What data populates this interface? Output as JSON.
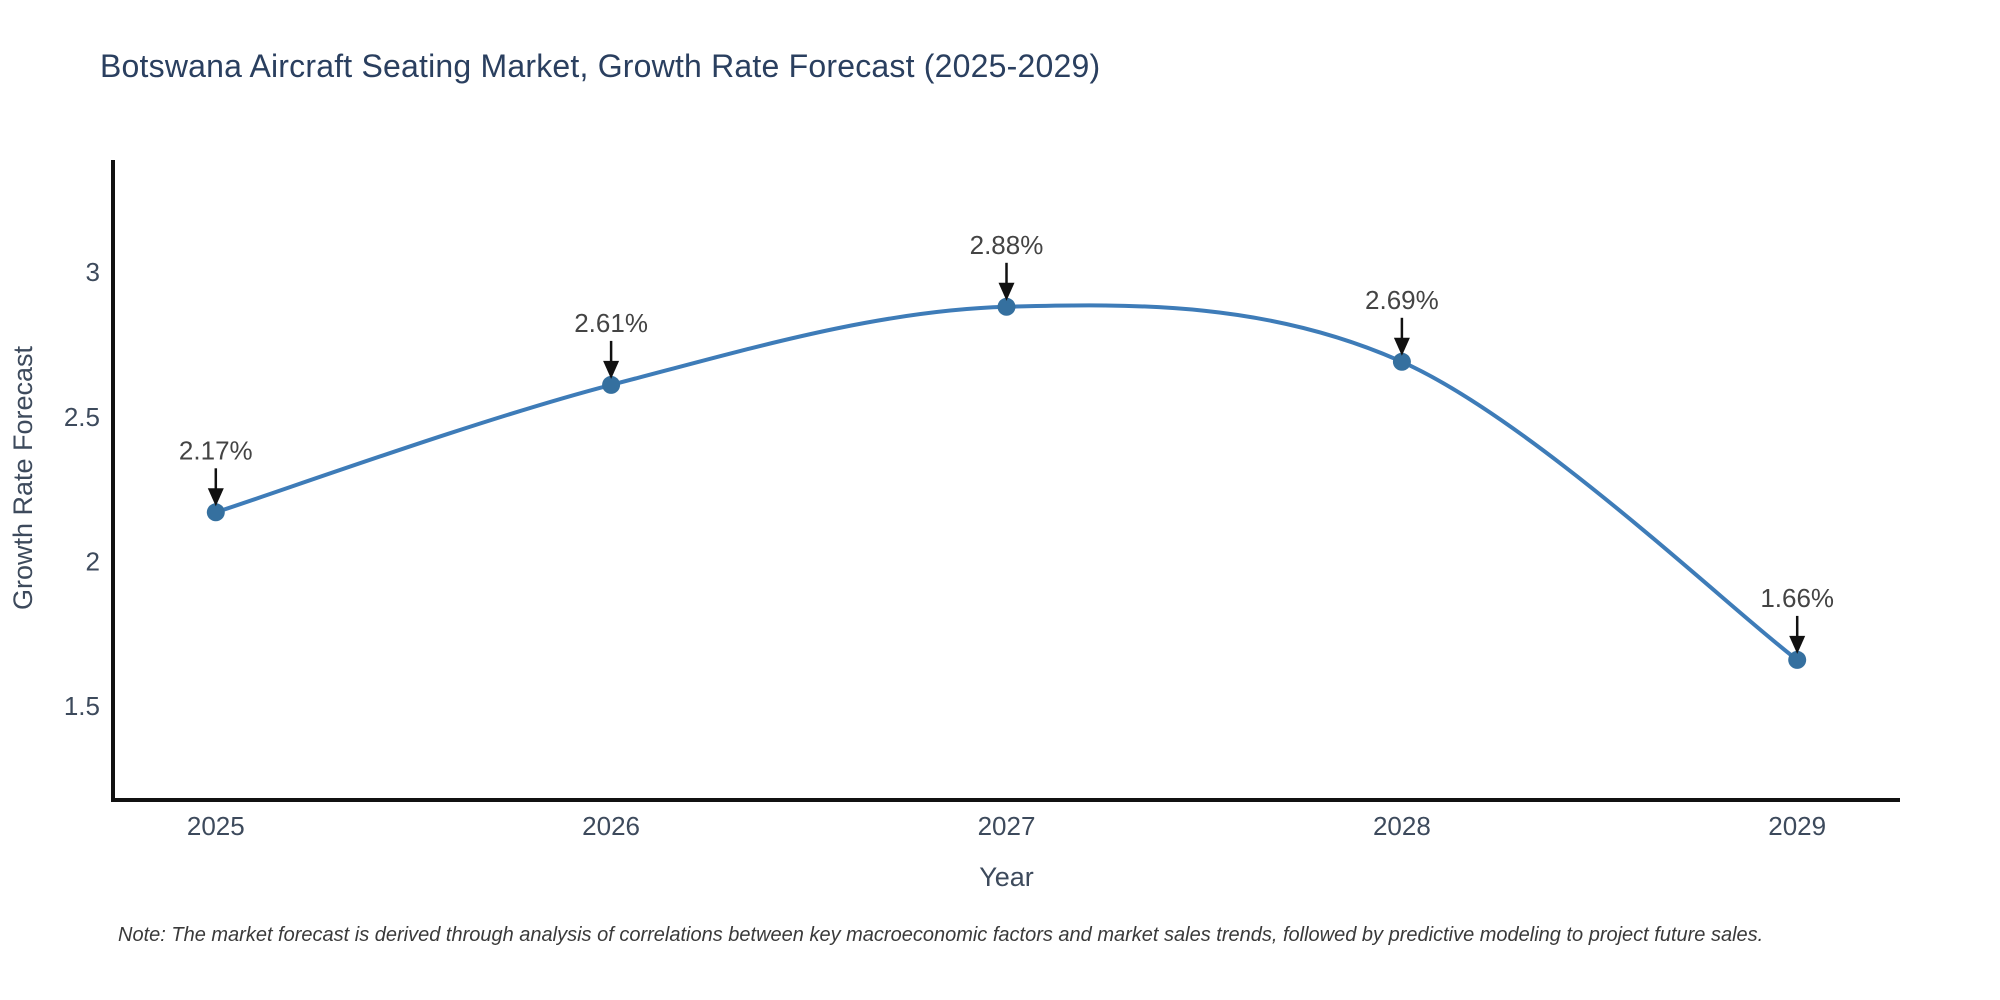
{
  "title": "Botswana Aircraft Seating Market, Growth Rate Forecast (2025-2029)",
  "note": "Note: The market forecast is derived through analysis of correlations between key macroeconomic factors and market sales trends, followed by predictive modeling to project future sales.",
  "chart_data": {
    "type": "line",
    "title": "Botswana Aircraft Seating Market, Growth Rate Forecast (2025-2029)",
    "xlabel": "Year",
    "ylabel": "Growth Rate Forecast",
    "x": [
      2025,
      2026,
      2027,
      2028,
      2029
    ],
    "xticks": [
      "2025",
      "2026",
      "2027",
      "2028",
      "2029"
    ],
    "yticks": [
      "1.5",
      "2",
      "2.5",
      "3"
    ],
    "ytick_values": [
      1.5,
      2,
      2.5,
      3
    ],
    "xlim": [
      2024.74,
      2029.26
    ],
    "ylim": [
      1.176,
      3.387
    ],
    "grid": false,
    "legend": "none",
    "line_shape": "spline",
    "series": [
      {
        "name": "Growth Rate Forecast",
        "values": [
          2.17,
          2.61,
          2.88,
          2.69,
          1.66
        ]
      }
    ],
    "point_labels": [
      "2.17%",
      "2.61%",
      "2.88%",
      "2.69%",
      "1.66%"
    ],
    "annotation_style": "arrow-down-to-point",
    "colors": {
      "line": "#3e7cb8",
      "marker": "#35709f",
      "axis": "#111111",
      "tick_label": "#3d4a5c",
      "axis_title": "#3d4a5c",
      "title": "#2a3f5f",
      "annotation_text": "#444444",
      "arrow": "#111111",
      "note": "#3a3a3a",
      "background": "#ffffff"
    }
  }
}
